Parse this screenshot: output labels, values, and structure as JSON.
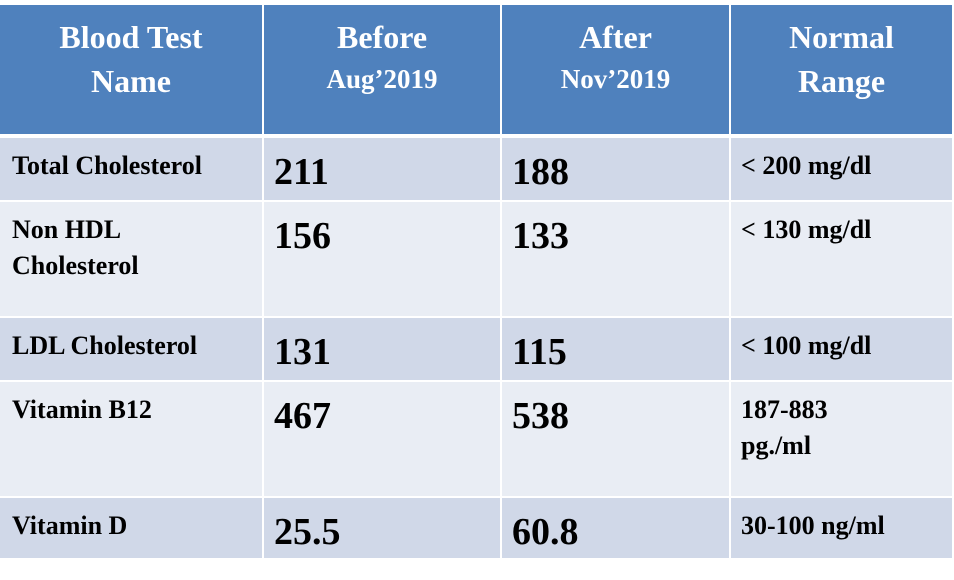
{
  "header": {
    "col1": {
      "line1": "Blood Test",
      "line2": "Name"
    },
    "col2": {
      "line1": "Before",
      "line2": "Aug’2019"
    },
    "col3": {
      "line1": "After",
      "line2": "Nov’2019"
    },
    "col4": {
      "line1": "Normal",
      "line2": "Range"
    }
  },
  "rows": [
    {
      "name_line1": "Total Cholesterol",
      "name_line2": "",
      "before": "211",
      "after": "188",
      "range_line1": "< 200 mg/dl",
      "range_line2": ""
    },
    {
      "name_line1": "Non HDL",
      "name_line2": "Cholesterol",
      "before": "156",
      "after": "133",
      "range_line1": "< 130 mg/dl",
      "range_line2": ""
    },
    {
      "name_line1": "LDL Cholesterol",
      "name_line2": "",
      "before": "131",
      "after": "115",
      "range_line1": "< 100 mg/dl",
      "range_line2": ""
    },
    {
      "name_line1": "Vitamin B12",
      "name_line2": "",
      "before": "467",
      "after": "538",
      "range_line1": "187-883",
      "range_line2": "pg./ml"
    },
    {
      "name_line1": "Vitamin D",
      "name_line2": "",
      "before": "25.5",
      "after": "60.8",
      "range_line1": "30-100 ng/ml",
      "range_line2": ""
    }
  ],
  "colors": {
    "header_bg": "#4f81bd",
    "row_odd_bg": "#d0d8e8",
    "row_even_bg": "#e9edf4"
  }
}
